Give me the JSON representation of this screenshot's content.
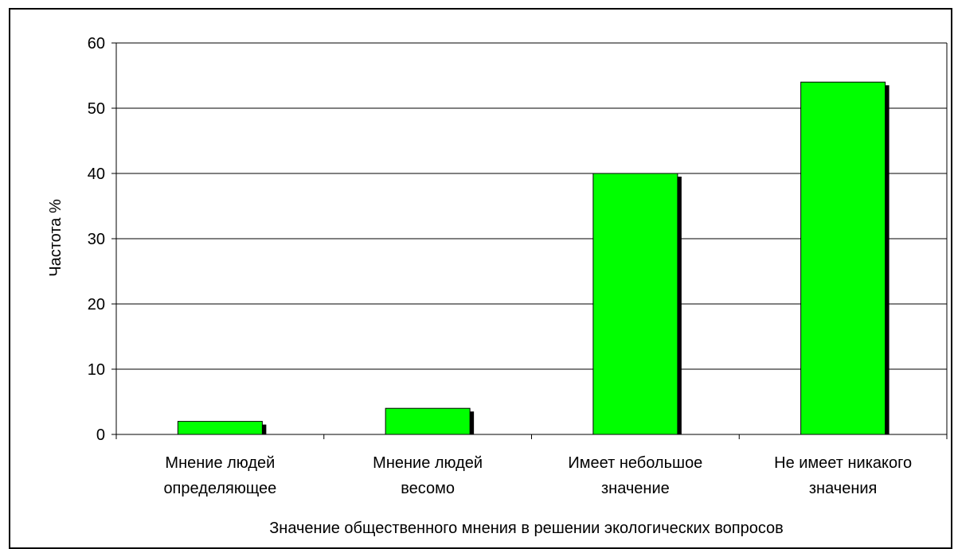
{
  "chart_data": {
    "type": "bar",
    "categories": [
      [
        "Мнение людей",
        "определяющее"
      ],
      [
        "Мнение людей",
        "весомо"
      ],
      [
        "Имеет небольшое",
        "значение"
      ],
      [
        "Не имеет никакого",
        "значения"
      ]
    ],
    "values": [
      2,
      4,
      40,
      54
    ],
    "xlabel": "Значение общественного мнения в решении экологических вопросов",
    "ylabel": "Частота %",
    "ylim": [
      0,
      60
    ],
    "yticks": [
      0,
      10,
      20,
      30,
      40,
      50,
      60
    ],
    "grid": true,
    "legend": "none",
    "colors": {
      "bar": "#00ff00",
      "bar_shadow": "#000000",
      "grid": "#000000",
      "frame": "#000000"
    }
  }
}
